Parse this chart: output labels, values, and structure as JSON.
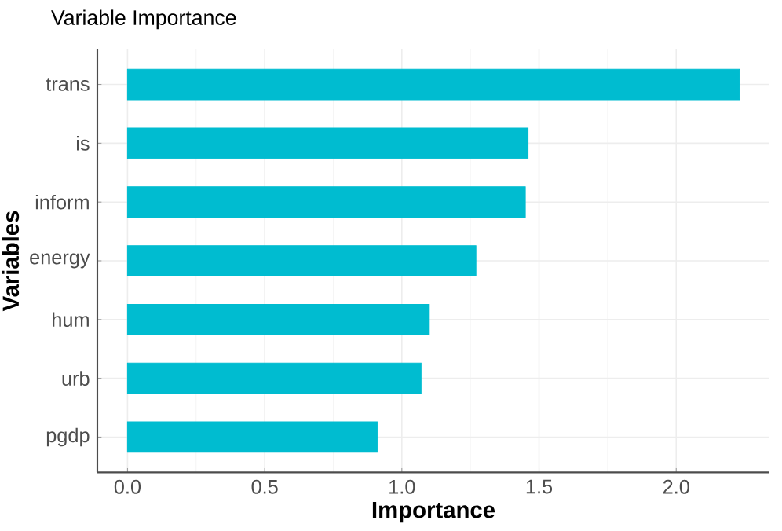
{
  "chart_data": {
    "type": "bar",
    "orientation": "horizontal",
    "title": "Variable Importance",
    "xlabel": "Importance",
    "ylabel": "Variables",
    "categories": [
      "trans",
      "is",
      "inform",
      "energy",
      "hum",
      "urb",
      "pgdp"
    ],
    "values": [
      2.23,
      1.46,
      1.45,
      1.27,
      1.1,
      1.07,
      0.91
    ],
    "color": "#00bcd0",
    "xlim": [
      -0.11,
      2.34
    ],
    "xticks": [
      {
        "value": 0,
        "label": "0.0"
      },
      0.5,
      {
        "value": 1,
        "label": "1.0"
      },
      1.5,
      {
        "value": 2,
        "label": "2.0"
      }
    ],
    "grid": true
  }
}
